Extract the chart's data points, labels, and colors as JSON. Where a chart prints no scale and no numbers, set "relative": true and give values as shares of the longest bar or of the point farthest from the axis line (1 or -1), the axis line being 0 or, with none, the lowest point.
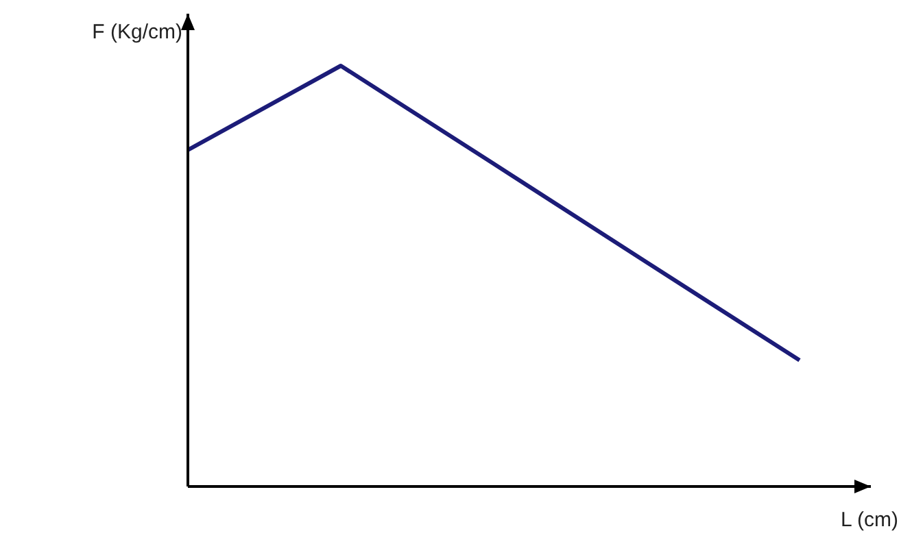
{
  "chart_data": {
    "type": "line",
    "relative": true,
    "xlabel": "L (cm)",
    "ylabel": "F (Kg/cm)",
    "categories": [
      null,
      null,
      null,
      null,
      null
    ],
    "series": [
      {
        "color": "#1c1c78",
        "values": [
          0.8,
          1,
          0.767,
          0.533,
          0.3
        ]
      }
    ],
    "grid": false,
    "legend": false,
    "marker": "none"
  }
}
